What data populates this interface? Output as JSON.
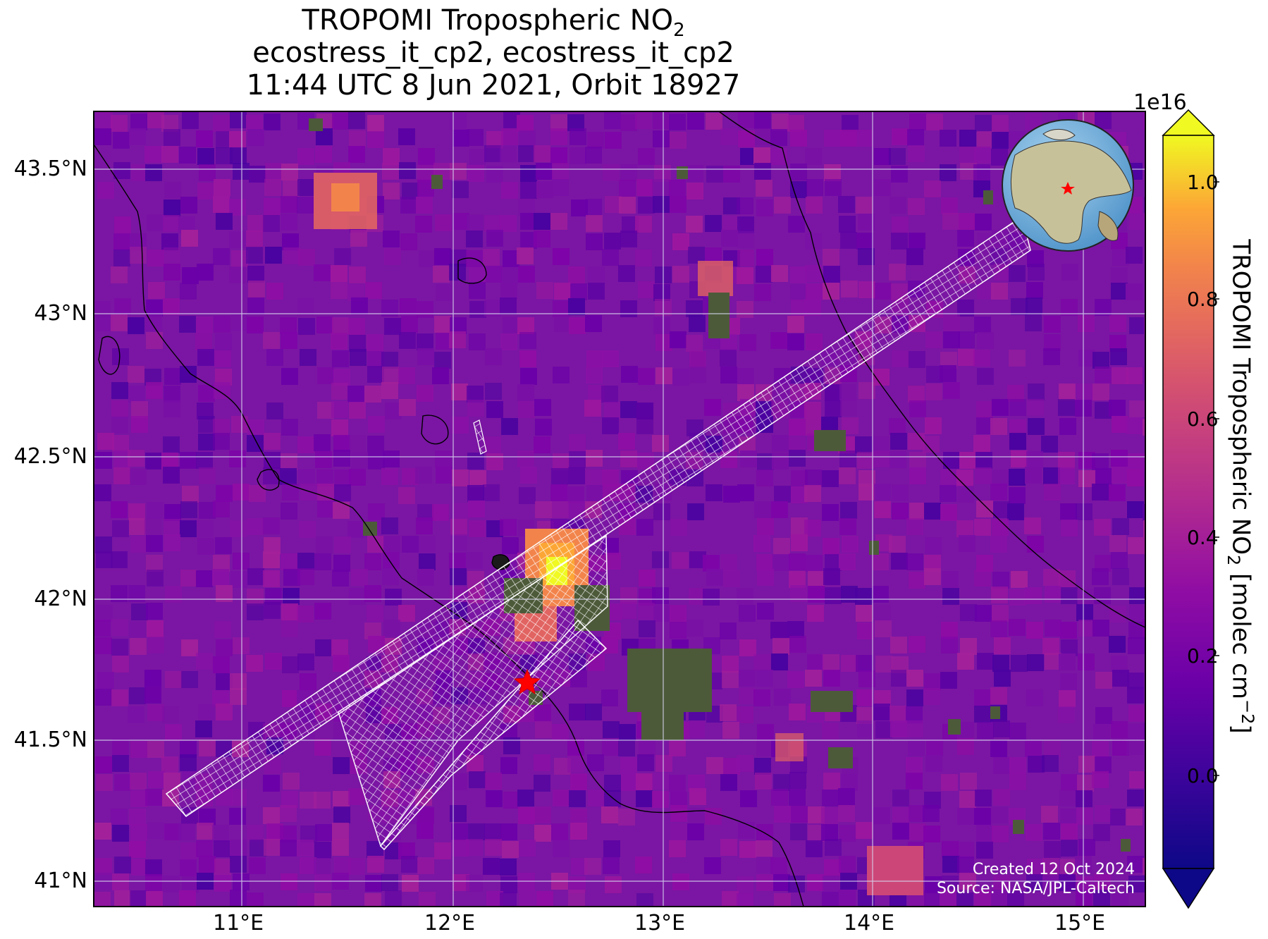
{
  "title": {
    "line1_main": "TROPOMI Tropospheric NO",
    "line1_sub": "2",
    "line2": "ecostress_it_cp2, ecostress_it_cp2",
    "line3": "11:44 UTC 8 Jun 2021, Orbit 18927"
  },
  "map": {
    "extent": {
      "lon_min": 10.3,
      "lon_max": 15.3,
      "lat_min": 40.9,
      "lat_max": 43.7
    },
    "lat_ticks": [
      "43.5°N",
      "43°N",
      "42.5°N",
      "42°N",
      "41.5°N",
      "41°N"
    ],
    "lon_ticks": [
      "11°E",
      "12°E",
      "13°E",
      "14°E",
      "15°E"
    ],
    "marker": {
      "lon": 12.35,
      "lat": 41.7,
      "symbol": "star",
      "color": "#ff0000"
    },
    "background_color": "#7a16a3",
    "gridline_color": "#d8d8f0",
    "swath_color": "#ffffff",
    "inset_globe": "globe-icon"
  },
  "credit": {
    "line1": "Created 12 Oct 2024",
    "line2": "Source: NASA/JPL-Caltech"
  },
  "colorbar": {
    "exponent": "1e16",
    "ticks": [
      "1.0",
      "0.8",
      "0.6",
      "0.4",
      "0.2",
      "0.0"
    ],
    "label_main": "TROPOMI Tropospheric NO",
    "label_sub": "2",
    "label_unit": " [molec cm",
    "label_sup": "−2",
    "label_end": "]",
    "colormap": "plasma",
    "range": [
      -0.15,
      1.05
    ]
  }
}
